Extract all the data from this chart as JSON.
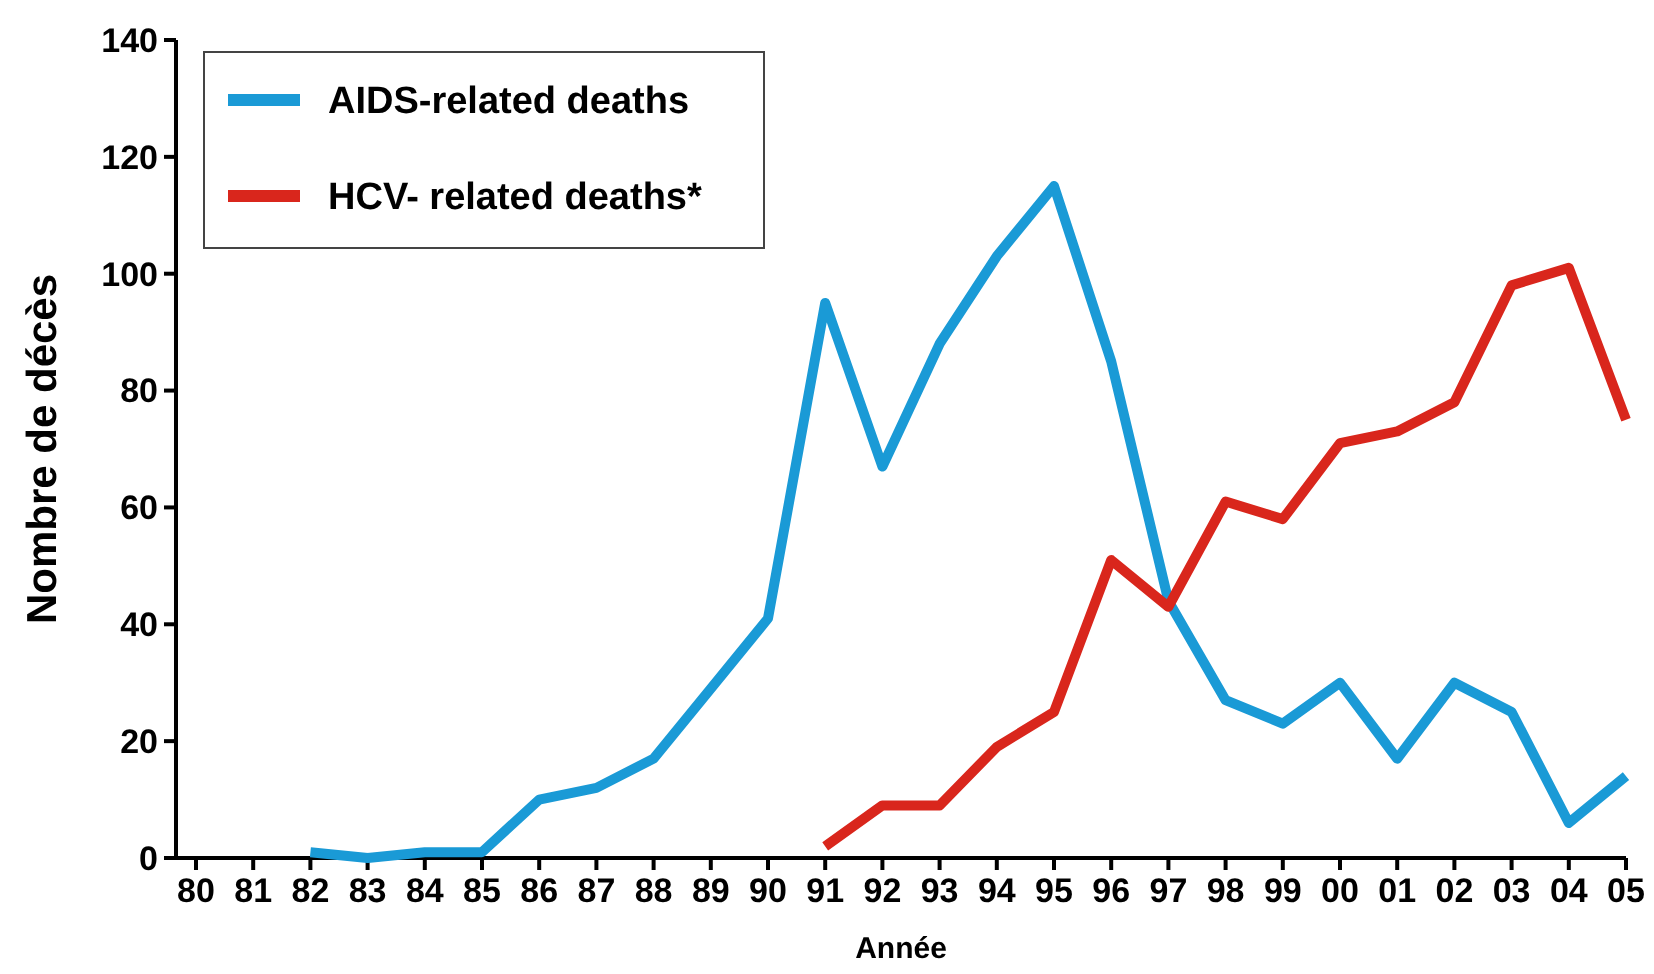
{
  "chart_data": {
    "type": "line",
    "xlabel": "Année",
    "ylabel": "Nombre de décès",
    "categories": [
      "80",
      "81",
      "82",
      "83",
      "84",
      "85",
      "86",
      "87",
      "88",
      "89",
      "90",
      "91",
      "92",
      "93",
      "94",
      "95",
      "96",
      "97",
      "98",
      "99",
      "00",
      "01",
      "02",
      "03",
      "04",
      "05"
    ],
    "series": [
      {
        "name": "AIDS-related deaths",
        "color": "#1a9ad6",
        "values": [
          null,
          null,
          1,
          0,
          1,
          1,
          10,
          12,
          17,
          29,
          41,
          95,
          67,
          88,
          103,
          115,
          85,
          44,
          27,
          23,
          30,
          17,
          30,
          25,
          6,
          14
        ]
      },
      {
        "name": "HCV- related deaths*",
        "color": "#d9261c",
        "values": [
          null,
          null,
          null,
          null,
          null,
          null,
          null,
          null,
          null,
          null,
          null,
          2,
          9,
          9,
          19,
          25,
          51,
          43,
          61,
          58,
          71,
          73,
          78,
          98,
          101,
          75
        ]
      }
    ],
    "ylim": [
      0,
      140
    ],
    "yticks": [
      0,
      20,
      40,
      60,
      80,
      100,
      120,
      140
    ],
    "grid": false,
    "legend": "top left",
    "marker": "none",
    "line_style": "solid"
  }
}
